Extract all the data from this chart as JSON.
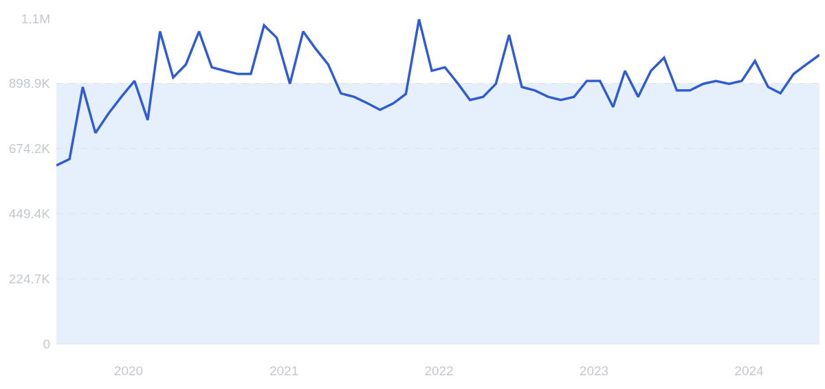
{
  "chart_data": {
    "type": "line",
    "x": [
      "2019-07-15",
      "2019-08-15",
      "2019-09-15",
      "2019-10-15",
      "2019-11-15",
      "2019-12-15",
      "2020-01-15",
      "2020-02-15",
      "2020-03-15",
      "2020-04-15",
      "2020-05-15",
      "2020-06-15",
      "2020-07-15",
      "2020-08-15",
      "2020-09-15",
      "2020-10-15",
      "2020-11-15",
      "2020-12-15",
      "2021-01-15",
      "2021-02-15",
      "2021-03-15",
      "2021-04-15",
      "2021-05-15",
      "2021-06-15",
      "2021-07-15",
      "2021-08-15",
      "2021-09-15",
      "2021-10-15",
      "2021-11-15",
      "2021-12-15",
      "2022-01-15",
      "2022-02-15",
      "2022-03-15",
      "2022-04-15",
      "2022-05-15",
      "2022-06-15",
      "2022-07-15",
      "2022-08-15",
      "2022-09-15",
      "2022-10-15",
      "2022-11-15",
      "2022-12-15",
      "2023-01-15",
      "2023-02-15",
      "2023-03-15",
      "2023-04-15",
      "2023-05-15",
      "2023-06-15",
      "2023-07-15",
      "2023-08-15",
      "2023-09-15",
      "2023-10-15",
      "2023-11-15",
      "2023-12-15",
      "2024-01-15",
      "2024-02-15",
      "2024-03-15",
      "2024-04-15",
      "2024-05-15",
      "2024-06-15"
    ],
    "series": [
      {
        "color": "#2f5bd3",
        "values": [
          616000,
          638000,
          887000,
          728000,
          796000,
          853000,
          908000,
          773000,
          1079000,
          920000,
          965000,
          1079000,
          955000,
          943000,
          932000,
          932000,
          1100000,
          1057000,
          898000,
          1079000,
          1022000,
          965000,
          865000,
          853000,
          832000,
          808000,
          830000,
          863000,
          1121000,
          943000,
          955000,
          898000,
          842000,
          853000,
          898000,
          1067000,
          887000,
          875000,
          853000,
          842000,
          853000,
          908000,
          908000,
          818000,
          943000,
          853000,
          943000,
          988000,
          875000,
          875000,
          898000,
          908000,
          898000,
          908000,
          977000,
          887000,
          865000,
          932000,
          965000,
          998000
        ]
      }
    ],
    "xlim": [
      "2019-07-15",
      "2024-06-15"
    ],
    "xticks": [
      {
        "value": "2020-01-01",
        "label": "2020"
      },
      {
        "value": "2021-01-01",
        "label": "2021"
      },
      {
        "value": "2022-01-01",
        "label": "2022"
      },
      {
        "value": "2023-01-01",
        "label": "2023"
      },
      {
        "value": "2024-01-01",
        "label": "2024"
      }
    ],
    "ylim": [
      0,
      1123600
    ],
    "yticks": [
      0,
      {
        "value": 224700,
        "label": "224.7K"
      },
      {
        "value": 449400,
        "label": "449.4K"
      },
      {
        "value": 674200,
        "label": "674.2K"
      },
      {
        "value": 898900,
        "label": "898.9K"
      },
      {
        "value": 1123600,
        "label": "1.1M"
      }
    ],
    "bands": [
      {
        "axis": "y",
        "from": 0,
        "to": 900000,
        "color": "#e6effc"
      }
    ],
    "grid": "y",
    "marker": "none",
    "line_style": "solid"
  }
}
